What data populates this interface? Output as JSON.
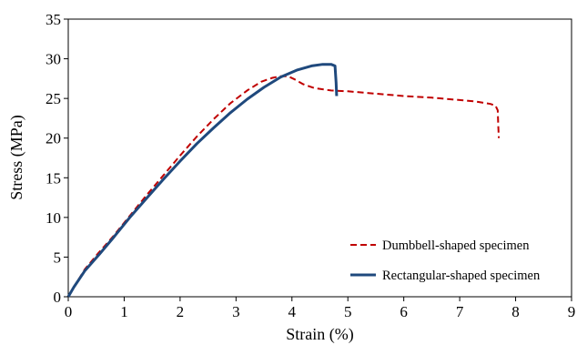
{
  "chart_data": {
    "type": "line",
    "title": "",
    "xlabel": "Strain (%)",
    "ylabel": "Stress (MPa)",
    "xlim": [
      0,
      9
    ],
    "ylim": [
      0,
      35
    ],
    "xticks": [
      "0",
      "1",
      "2",
      "3",
      "4",
      "5",
      "6",
      "7",
      "8",
      "9"
    ],
    "yticks": [
      "0",
      "5",
      "10",
      "15",
      "20",
      "25",
      "30",
      "35"
    ],
    "grid": false,
    "legend_position": "bottom-right",
    "series": [
      {
        "name": "Dumbbell-shaped specimen",
        "color": "#c00000",
        "style": "dashed",
        "x": [
          0,
          0.1,
          0.3,
          0.55,
          0.8,
          1.1,
          1.4,
          1.7,
          2.0,
          2.3,
          2.6,
          2.9,
          3.2,
          3.45,
          3.65,
          3.8,
          3.93,
          4.05,
          4.2,
          4.4,
          4.7,
          5.0,
          5.5,
          6.0,
          6.5,
          7.0,
          7.3,
          7.55,
          7.64,
          7.68,
          7.69,
          7.7
        ],
        "y": [
          0,
          1.2,
          3.5,
          5.6,
          7.6,
          10.2,
          12.8,
          15.3,
          17.8,
          20.2,
          22.4,
          24.4,
          26.0,
          27.1,
          27.6,
          27.8,
          27.8,
          27.4,
          26.8,
          26.3,
          26.0,
          25.9,
          25.6,
          25.3,
          25.1,
          24.8,
          24.6,
          24.3,
          24.1,
          23.5,
          21.5,
          20.0
        ]
      },
      {
        "name": "Rectangular-shaped specimen",
        "color": "#1f497d",
        "style": "solid",
        "x": [
          0,
          0.1,
          0.3,
          0.55,
          0.8,
          1.1,
          1.4,
          1.7,
          2.0,
          2.3,
          2.6,
          2.9,
          3.2,
          3.5,
          3.8,
          4.1,
          4.35,
          4.55,
          4.7,
          4.77,
          4.79,
          4.8
        ],
        "y": [
          0,
          1.2,
          3.3,
          5.3,
          7.4,
          10.0,
          12.4,
          14.8,
          17.1,
          19.3,
          21.3,
          23.2,
          24.9,
          26.4,
          27.7,
          28.6,
          29.1,
          29.3,
          29.3,
          29.1,
          27.0,
          25.3
        ]
      }
    ]
  }
}
